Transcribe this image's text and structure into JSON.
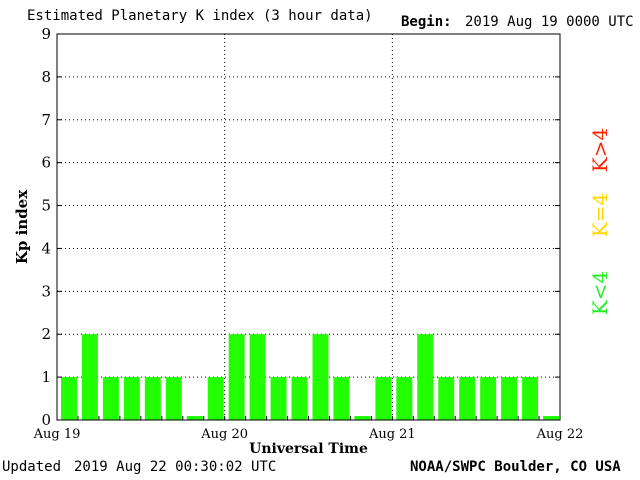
{
  "header": {
    "title": "Estimated Planetary K index (3 hour data)",
    "begin_label": "Begin:",
    "begin_value": "2019 Aug 19 0000 UTC"
  },
  "footer": {
    "updated_label": "Updated",
    "updated_value": "2019 Aug 22 00:30:02 UTC",
    "source": "NOAA/SWPC Boulder, CO USA"
  },
  "legend": {
    "items": [
      {
        "label": "K>4",
        "color": "#ff2200"
      },
      {
        "label": "K=4",
        "color": "#ffd700"
      },
      {
        "label": "K<4",
        "color": "#22ee22"
      }
    ]
  },
  "colors": {
    "bar_low": "#22ff00",
    "bar_eq4": "#ffd700",
    "bar_high": "#ff2200"
  },
  "chart_data": {
    "type": "bar",
    "title": "Estimated Planetary K index (3 hour data)",
    "xlabel": "Universal Time",
    "ylabel": "Kp index",
    "ylim": [
      0,
      9
    ],
    "yticks": [
      0,
      1,
      2,
      3,
      4,
      5,
      6,
      7,
      8,
      9
    ],
    "day_labels": [
      "Aug 19",
      "Aug 20",
      "Aug 21",
      "Aug 22"
    ],
    "interval_hours": 3,
    "grid": "dotted horizontal at each integer, dotted vertical at day boundaries",
    "series": [
      {
        "values": [
          1,
          2,
          1,
          1,
          1,
          1,
          0,
          1,
          2,
          2,
          1,
          1,
          2,
          1,
          0,
          1,
          1,
          2,
          1,
          1,
          1,
          1,
          1,
          0
        ]
      }
    ]
  }
}
